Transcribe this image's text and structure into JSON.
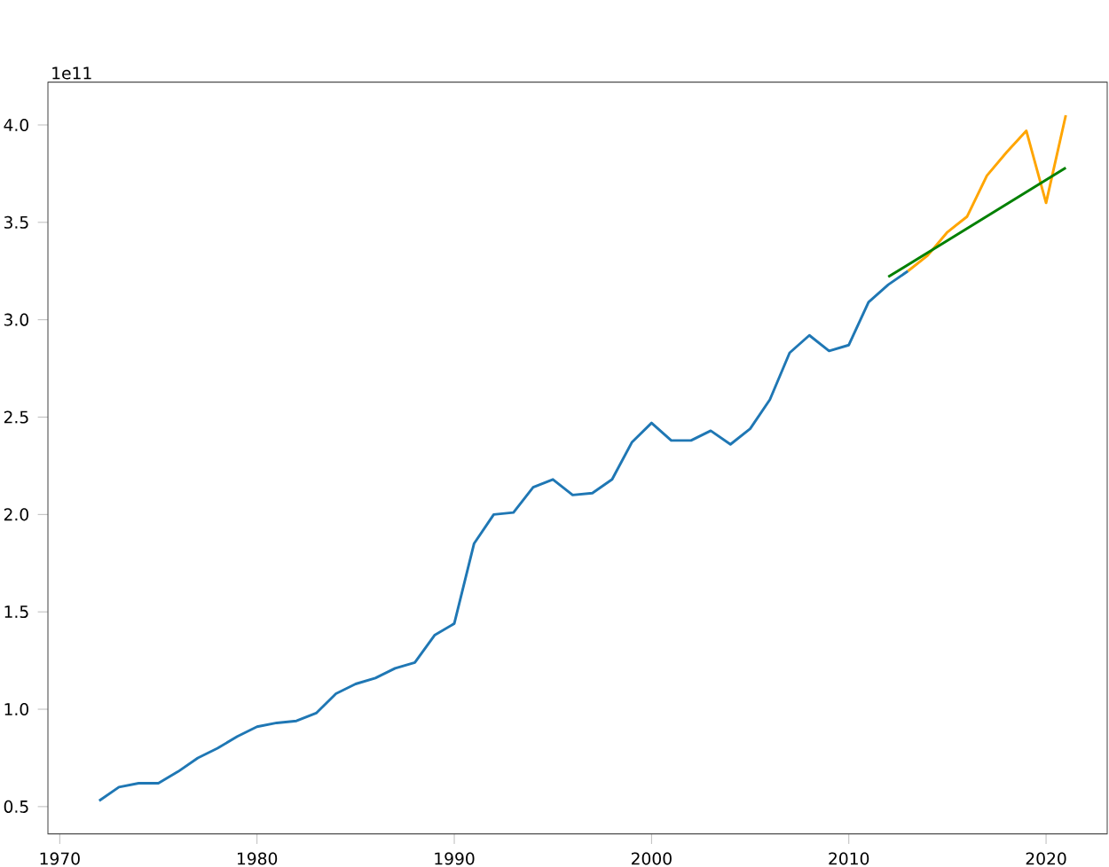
{
  "chart_data": {
    "type": "line",
    "annotations": [
      "1e11"
    ],
    "series": [
      {
        "color": "#1f77b4",
        "x": [
          1972,
          1973,
          1974,
          1975,
          1976,
          1977,
          1978,
          1979,
          1980,
          1981,
          1982,
          1983,
          1984,
          1985,
          1986,
          1987,
          1988,
          1989,
          1990,
          1991,
          1992,
          1993,
          1994,
          1995,
          1996,
          1997,
          1998,
          1999,
          2000,
          2001,
          2002,
          2003,
          2004,
          2005,
          2006,
          2007,
          2008,
          2009,
          2010,
          2011,
          2012,
          2013
        ],
        "values": [
          0.53,
          0.6,
          0.62,
          0.62,
          0.68,
          0.75,
          0.8,
          0.86,
          0.91,
          0.93,
          0.94,
          0.98,
          1.08,
          1.13,
          1.16,
          1.21,
          1.24,
          1.38,
          1.44,
          1.85,
          2.0,
          2.01,
          2.14,
          2.18,
          2.1,
          2.11,
          2.18,
          2.37,
          2.47,
          2.38,
          2.38,
          2.43,
          2.36,
          2.44,
          2.59,
          2.83,
          2.92,
          2.84,
          2.87,
          3.09,
          3.18,
          3.25
        ]
      },
      {
        "color": "#ffa500",
        "x": [
          2013,
          2014,
          2015,
          2016,
          2017,
          2018,
          2019,
          2020,
          2021
        ],
        "values": [
          3.25,
          3.33,
          3.45,
          3.53,
          3.74,
          3.86,
          3.97,
          3.6,
          4.05
        ]
      },
      {
        "color": "#008000",
        "x": [
          2012,
          2021
        ],
        "values": [
          3.22,
          3.78
        ]
      }
    ],
    "xlim": [
      1969.4,
      2023.1
    ],
    "ylim": [
      0.36,
      4.22
    ],
    "xticks": [
      1970,
      1980,
      1990,
      2000,
      2010,
      2020
    ],
    "yticks": [
      {
        "value": 0.5,
        "label": "0.5"
      },
      {
        "value": 1.0,
        "label": "1.0"
      },
      {
        "value": 1.5,
        "label": "1.5"
      },
      {
        "value": 2.0,
        "label": "2.0"
      },
      {
        "value": 2.5,
        "label": "2.5"
      },
      {
        "value": 3.0,
        "label": "3.0"
      },
      {
        "value": 3.5,
        "label": "3.5"
      },
      {
        "value": 4.0,
        "label": "4.0"
      }
    ],
    "grid": false,
    "marker": "none",
    "line_style": "solid"
  }
}
